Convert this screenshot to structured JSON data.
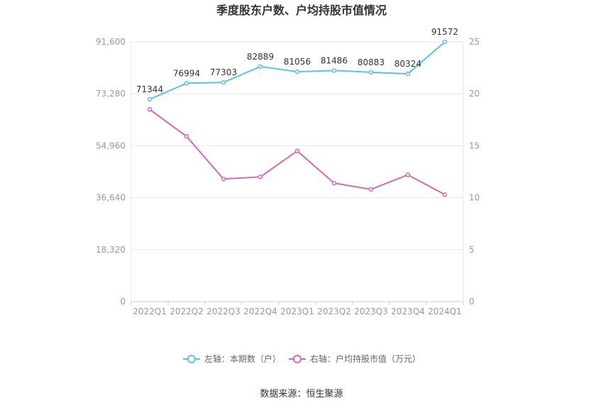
{
  "chart_data": {
    "type": "line",
    "title": "季度股东户数、户均持股市值情况",
    "categories": [
      "2022Q1",
      "2022Q2",
      "2022Q3",
      "2022Q4",
      "2023Q1",
      "2023Q2",
      "2023Q3",
      "2023Q4",
      "2024Q1"
    ],
    "y_left": {
      "ticks": [
        "0",
        "18,320",
        "36,640",
        "54,960",
        "73,280",
        "91,600"
      ],
      "ylim": [
        0,
        91600
      ]
    },
    "y_right": {
      "ticks": [
        "0",
        "5",
        "10",
        "15",
        "20",
        "25"
      ],
      "ylim": [
        0,
        25
      ]
    },
    "grid": true,
    "legend_position": "bottom",
    "series": [
      {
        "name": "左轴：本期数（户）",
        "axis": "left",
        "color": "#5bc0eb",
        "values": [
          71344,
          76994,
          77303,
          82889,
          81056,
          81486,
          80883,
          80324,
          91572
        ],
        "labels": [
          "71344",
          "76994",
          "77303",
          "82889",
          "81056",
          "81486",
          "80883",
          "80324",
          "91572"
        ]
      },
      {
        "name": "右轴：户均持股市值（万元）",
        "axis": "right",
        "color": "#d768b0",
        "values": [
          18.5,
          15.9,
          11.8,
          12.0,
          14.5,
          11.4,
          10.8,
          12.2,
          10.3
        ]
      }
    ],
    "source": "数据来源：恒生聚源"
  }
}
